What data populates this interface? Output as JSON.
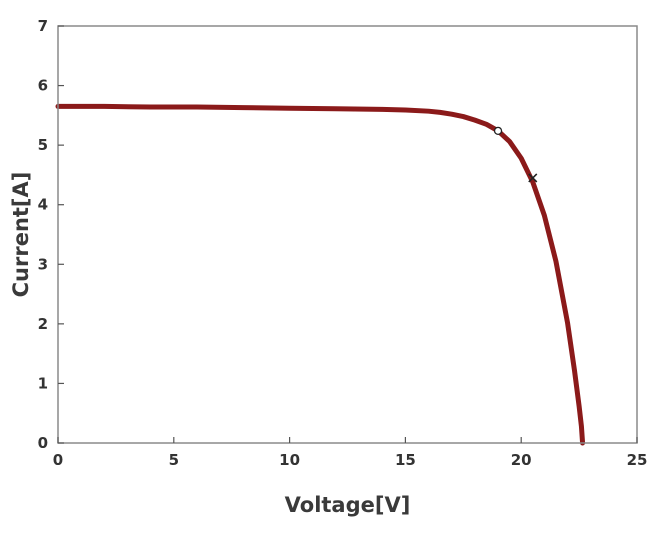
{
  "chart_data": {
    "type": "line",
    "xlabel": "Voltage[V]",
    "ylabel": "Current[A]",
    "xlim": [
      0,
      25
    ],
    "ylim": [
      0,
      7
    ],
    "xticks": [
      "0",
      "5",
      "10",
      "15",
      "20",
      "25"
    ],
    "yticks": [
      "0",
      "1",
      "2",
      "3",
      "4",
      "5",
      "6",
      "7"
    ],
    "grid": false,
    "legend": "none",
    "series": [
      {
        "color": "#8b1a1a",
        "x": [
          0,
          2,
          4,
          6,
          8,
          10,
          12,
          14,
          15,
          16,
          16.5,
          17,
          17.5,
          18,
          18.5,
          19,
          19.5,
          20,
          20.5,
          21,
          21.5,
          22,
          22.3,
          22.5,
          22.6,
          22.65
        ],
        "y": [
          5.65,
          5.65,
          5.64,
          5.64,
          5.63,
          5.62,
          5.61,
          5.6,
          5.59,
          5.57,
          5.55,
          5.52,
          5.48,
          5.42,
          5.35,
          5.24,
          5.06,
          4.78,
          4.38,
          3.82,
          3.05,
          2.02,
          1.22,
          0.62,
          0.28,
          0.0
        ]
      }
    ],
    "markers": [
      {
        "x": 19.0,
        "y": 5.24,
        "style": "open-circle"
      },
      {
        "x": 20.5,
        "y": 4.45,
        "style": "cross"
      }
    ]
  }
}
